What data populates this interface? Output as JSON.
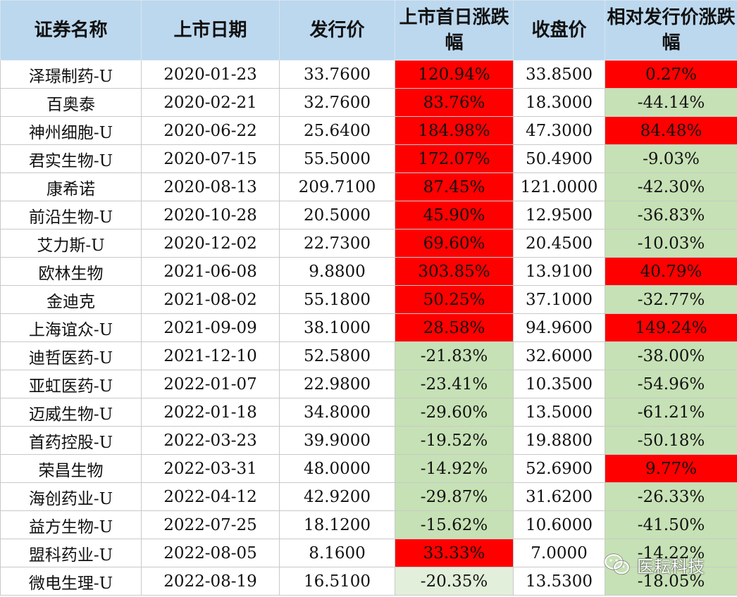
{
  "table": {
    "headers": [
      "证券名称",
      "上市日期",
      "发行价",
      "上市首日涨跌幅",
      "收盘价",
      "相对发行价涨跌幅"
    ],
    "rows": [
      {
        "name": "泽璟制药-U",
        "date": "2020-01-23",
        "issue_price": "33.7600",
        "first_day_change": "120.94%",
        "close_price": "33.8500",
        "change_vs_issue": "0.27%",
        "first_day_status": "up",
        "vs_issue_status": "up"
      },
      {
        "name": "百奥泰",
        "date": "2020-02-21",
        "issue_price": "32.7600",
        "first_day_change": "83.76%",
        "close_price": "18.3000",
        "change_vs_issue": "-44.14%",
        "first_day_status": "up",
        "vs_issue_status": "down"
      },
      {
        "name": "神州细胞-U",
        "date": "2020-06-22",
        "issue_price": "25.6400",
        "first_day_change": "184.98%",
        "close_price": "47.3000",
        "change_vs_issue": "84.48%",
        "first_day_status": "up",
        "vs_issue_status": "up"
      },
      {
        "name": "君实生物-U",
        "date": "2020-07-15",
        "issue_price": "55.5000",
        "first_day_change": "172.07%",
        "close_price": "50.4900",
        "change_vs_issue": "-9.03%",
        "first_day_status": "up",
        "vs_issue_status": "down"
      },
      {
        "name": "康希诺",
        "date": "2020-08-13",
        "issue_price": "209.7100",
        "first_day_change": "87.45%",
        "close_price": "121.0000",
        "change_vs_issue": "-42.30%",
        "first_day_status": "up",
        "vs_issue_status": "down"
      },
      {
        "name": "前沿生物-U",
        "date": "2020-10-28",
        "issue_price": "20.5000",
        "first_day_change": "45.90%",
        "close_price": "12.9500",
        "change_vs_issue": "-36.83%",
        "first_day_status": "up",
        "vs_issue_status": "down"
      },
      {
        "name": "艾力斯-U",
        "date": "2020-12-02",
        "issue_price": "22.7300",
        "first_day_change": "69.60%",
        "close_price": "20.4500",
        "change_vs_issue": "-10.03%",
        "first_day_status": "up",
        "vs_issue_status": "down"
      },
      {
        "name": "欧林生物",
        "date": "2021-06-08",
        "issue_price": "9.8800",
        "first_day_change": "303.85%",
        "close_price": "13.9100",
        "change_vs_issue": "40.79%",
        "first_day_status": "up",
        "vs_issue_status": "up"
      },
      {
        "name": "金迪克",
        "date": "2021-08-02",
        "issue_price": "55.1800",
        "first_day_change": "50.25%",
        "close_price": "37.1000",
        "change_vs_issue": "-32.77%",
        "first_day_status": "up",
        "vs_issue_status": "down"
      },
      {
        "name": "上海谊众-U",
        "date": "2021-09-09",
        "issue_price": "38.1000",
        "first_day_change": "28.58%",
        "close_price": "94.9600",
        "change_vs_issue": "149.24%",
        "first_day_status": "up",
        "vs_issue_status": "up"
      },
      {
        "name": "迪哲医药-U",
        "date": "2021-12-10",
        "issue_price": "52.5800",
        "first_day_change": "-21.83%",
        "close_price": "32.6000",
        "change_vs_issue": "-38.00%",
        "first_day_status": "down",
        "vs_issue_status": "down"
      },
      {
        "name": "亚虹医药-U",
        "date": "2022-01-07",
        "issue_price": "22.9800",
        "first_day_change": "-23.41%",
        "close_price": "10.3500",
        "change_vs_issue": "-54.96%",
        "first_day_status": "down",
        "vs_issue_status": "down"
      },
      {
        "name": "迈威生物-U",
        "date": "2022-01-18",
        "issue_price": "34.8000",
        "first_day_change": "-29.60%",
        "close_price": "13.5000",
        "change_vs_issue": "-61.21%",
        "first_day_status": "down",
        "vs_issue_status": "down"
      },
      {
        "name": "首药控股-U",
        "date": "2022-03-23",
        "issue_price": "39.9000",
        "first_day_change": "-19.52%",
        "close_price": "19.8800",
        "change_vs_issue": "-50.18%",
        "first_day_status": "down",
        "vs_issue_status": "down"
      },
      {
        "name": "荣昌生物",
        "date": "2022-03-31",
        "issue_price": "48.0000",
        "first_day_change": "-14.92%",
        "close_price": "52.6900",
        "change_vs_issue": "9.77%",
        "first_day_status": "down",
        "vs_issue_status": "up"
      },
      {
        "name": "海创药业-U",
        "date": "2022-04-12",
        "issue_price": "42.9200",
        "first_day_change": "-29.87%",
        "close_price": "31.6200",
        "change_vs_issue": "-26.33%",
        "first_day_status": "down",
        "vs_issue_status": "down"
      },
      {
        "name": "益方生物-U",
        "date": "2022-07-25",
        "issue_price": "18.1200",
        "first_day_change": "-15.62%",
        "close_price": "10.6000",
        "change_vs_issue": "-41.50%",
        "first_day_status": "down",
        "vs_issue_status": "down"
      },
      {
        "name": "盟科药业-U",
        "date": "2022-08-05",
        "issue_price": "8.1600",
        "first_day_change": "33.33%",
        "close_price": "7.0000",
        "change_vs_issue": "-14.22%",
        "first_day_status": "up",
        "vs_issue_status": "down"
      },
      {
        "name": "微电生理-U",
        "date": "2022-08-19",
        "issue_price": "16.5100",
        "first_day_change": "-20.35%",
        "close_price": "13.5300",
        "change_vs_issue": "-18.05%",
        "first_day_status": "down-light",
        "vs_issue_status": "down"
      }
    ]
  },
  "colors": {
    "header_bg": "#bcd8ee",
    "up_fill": "#ff0000",
    "down_fill": "#c6e1b5",
    "down_light_fill": "#e2efda"
  },
  "watermark": {
    "icon": "wechat-icon",
    "text": "医耘科技"
  }
}
